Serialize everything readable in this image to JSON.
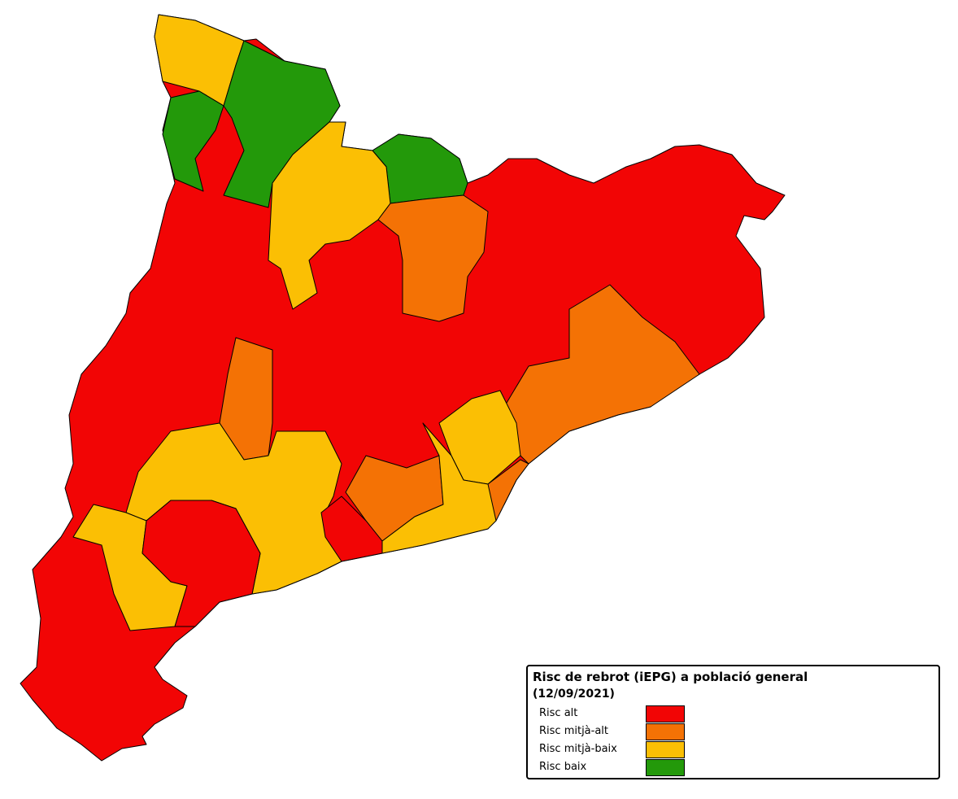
{
  "legend": {
    "title": "Risc de rebrot (iEPG) a població general",
    "subtitle": "(12/09/2021)",
    "items": [
      {
        "label": "Risc alt",
        "color": "#f20505"
      },
      {
        "label": "Risc mitjà-alt",
        "color": "#f47205"
      },
      {
        "label": "Risc mitjà-baix",
        "color": "#fbbf04"
      },
      {
        "label": "Risc baix",
        "color": "#23990a"
      }
    ]
  }
}
